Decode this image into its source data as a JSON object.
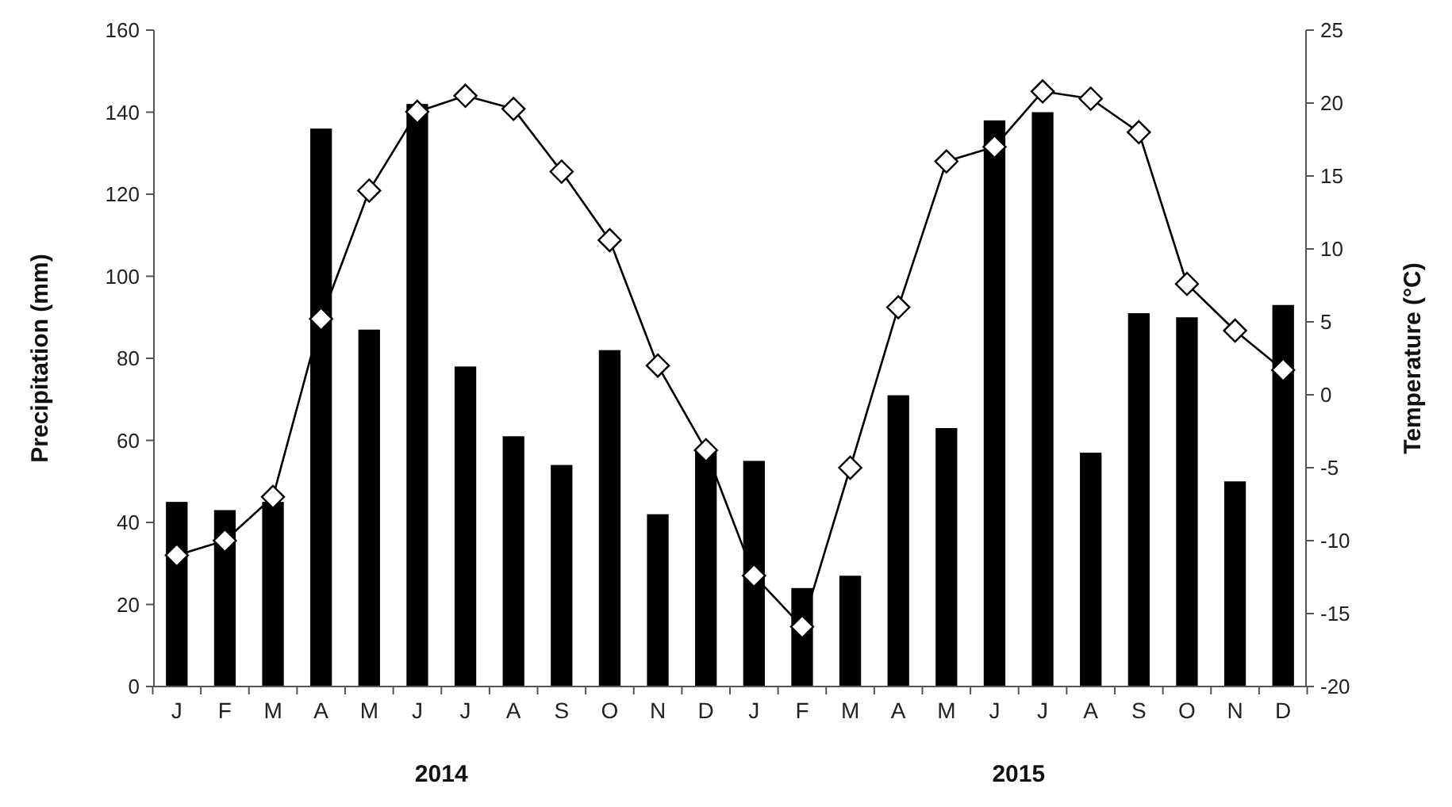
{
  "chart_data": {
    "type": "bar",
    "xlabel": null,
    "ylabel": "Precipitation (mm)",
    "y2label": "Temperature (°C)",
    "categories": [
      "J",
      "F",
      "M",
      "A",
      "M",
      "J",
      "J",
      "A",
      "S",
      "O",
      "N",
      "D",
      "J",
      "F",
      "M",
      "A",
      "M",
      "J",
      "J",
      "A",
      "S",
      "O",
      "N",
      "D"
    ],
    "series": [
      {
        "color": "#000000",
        "values": [
          45,
          43,
          45,
          136,
          87,
          142,
          78,
          61,
          54,
          82,
          42,
          58,
          55,
          24,
          27,
          71,
          63,
          138,
          140,
          57,
          91,
          90,
          50,
          93
        ]
      },
      {
        "type": "line",
        "axis": "y2",
        "color": "#000000",
        "marker": "diamond",
        "line_style": "solid",
        "values": [
          -11,
          -10,
          -7,
          5.2,
          14,
          19.4,
          20.5,
          19.6,
          15.3,
          10.6,
          2,
          -3.8,
          -12.4,
          -15.9,
          -5,
          6,
          16,
          17,
          20.8,
          20.3,
          18,
          7.6,
          4.4,
          1.7
        ]
      }
    ],
    "ylim": [
      0,
      160
    ],
    "yticks": [
      0,
      20,
      40,
      60,
      80,
      100,
      120,
      140,
      160
    ],
    "y2lim": [
      -20,
      25
    ],
    "y2ticks": [
      -20,
      -15,
      -10,
      -5,
      0,
      5,
      10,
      15,
      20,
      25
    ],
    "annotations": [
      "2014",
      "2015"
    ],
    "grid": false
  }
}
